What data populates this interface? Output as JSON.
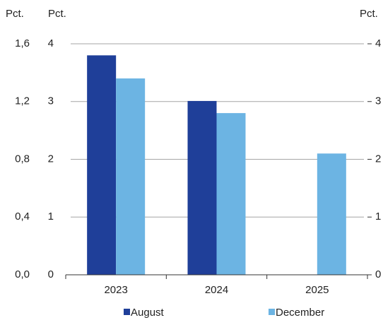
{
  "chart_data": {
    "type": "bar",
    "y_axis_label": "Pct.",
    "y2_axis_label": "Pct.",
    "y3_axis_label": "Pct.",
    "categories": [
      "2023",
      "2024",
      "2025"
    ],
    "series": [
      {
        "name": "August",
        "color": "#1f3f99",
        "values": [
          3.8,
          3.01,
          null
        ]
      },
      {
        "name": "December",
        "color": "#6cb4e3",
        "values": [
          3.4,
          2.8,
          2.1
        ]
      }
    ],
    "ylim": [
      0,
      4
    ],
    "yticks": [
      0,
      1,
      2,
      3,
      4
    ],
    "y2lim": [
      0,
      4
    ],
    "y2ticks": [
      0,
      1,
      2,
      3,
      4
    ],
    "y3lim": [
      0,
      1.6
    ],
    "y3ticks": [
      {
        "value": 0,
        "label": "0,0"
      },
      {
        "value": 0.4,
        "label": "0,4"
      },
      {
        "value": 0.8,
        "label": "0,8"
      },
      {
        "value": 1.2,
        "label": "1,2"
      },
      {
        "value": 1.6,
        "label": "1,6"
      }
    ],
    "grid": true
  }
}
